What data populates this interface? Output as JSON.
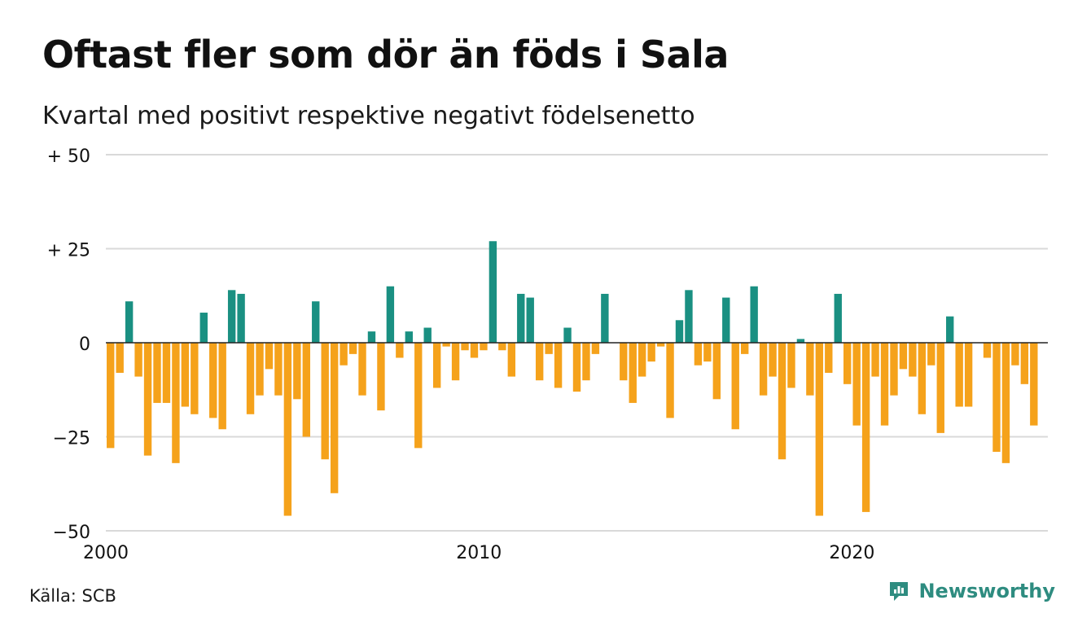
{
  "title": "Oftast fler som dör än föds i Sala",
  "subtitle": "Kvartal med positivt respektive negativt födelsenetto",
  "source": "Källa: SCB",
  "brand": {
    "name": "Newsworthy",
    "icon": "newsworthy-logo-icon",
    "color": "#2e8c80"
  },
  "colors": {
    "positive": "#1a9082",
    "negative": "#f5a21b",
    "grid": "#d9d9d9",
    "zero_line": "#222222"
  },
  "chart_data": {
    "type": "bar",
    "title": "Oftast fler som dör än föds i Sala",
    "subtitle": "Kvartal med positivt respektive negativt födelsenetto",
    "xlabel": "",
    "ylabel": "",
    "ylim": [
      -50,
      50
    ],
    "yticks": [
      {
        "value": 50,
        "label": "+ 50"
      },
      {
        "value": 25,
        "label": "+ 25"
      },
      {
        "value": 0,
        "label": "0"
      },
      {
        "value": -25,
        "label": "−25"
      },
      {
        "value": -50,
        "label": "−50"
      }
    ],
    "xticks": [
      {
        "value": 2000,
        "label": "2000"
      },
      {
        "value": 2010,
        "label": "2010"
      },
      {
        "value": 2020,
        "label": "2020"
      }
    ],
    "x_start": 2000,
    "x_end": 2025.25,
    "periods_per_year": 4,
    "grid": true,
    "legend": "none",
    "categories": [
      "2000Q1",
      "2000Q2",
      "2000Q3",
      "2000Q4",
      "2001Q1",
      "2001Q2",
      "2001Q3",
      "2001Q4",
      "2002Q1",
      "2002Q2",
      "2002Q3",
      "2002Q4",
      "2003Q1",
      "2003Q2",
      "2003Q3",
      "2003Q4",
      "2004Q1",
      "2004Q2",
      "2004Q3",
      "2004Q4",
      "2005Q1",
      "2005Q2",
      "2005Q3",
      "2005Q4",
      "2006Q1",
      "2006Q2",
      "2006Q3",
      "2006Q4",
      "2007Q1",
      "2007Q2",
      "2007Q3",
      "2007Q4",
      "2008Q1",
      "2008Q2",
      "2008Q3",
      "2008Q4",
      "2009Q1",
      "2009Q2",
      "2009Q3",
      "2009Q4",
      "2010Q1",
      "2010Q2",
      "2010Q3",
      "2010Q4",
      "2011Q1",
      "2011Q2",
      "2011Q3",
      "2011Q4",
      "2012Q1",
      "2012Q2",
      "2012Q3",
      "2012Q4",
      "2013Q1",
      "2013Q2",
      "2013Q3",
      "2013Q4",
      "2014Q1",
      "2014Q2",
      "2014Q3",
      "2014Q4",
      "2015Q1",
      "2015Q2",
      "2015Q3",
      "2015Q4",
      "2016Q1",
      "2016Q2",
      "2016Q3",
      "2016Q4",
      "2017Q1",
      "2017Q2",
      "2017Q3",
      "2017Q4",
      "2018Q1",
      "2018Q2",
      "2018Q3",
      "2018Q4",
      "2019Q1",
      "2019Q2",
      "2019Q3",
      "2019Q4",
      "2020Q1",
      "2020Q2",
      "2020Q3",
      "2020Q4",
      "2021Q1",
      "2021Q2",
      "2021Q3",
      "2021Q4",
      "2022Q1",
      "2022Q2",
      "2022Q3",
      "2022Q4",
      "2023Q1",
      "2023Q2",
      "2023Q3",
      "2023Q4",
      "2024Q1",
      "2024Q2",
      "2024Q3",
      "2024Q4",
      "2025Q1"
    ],
    "values": [
      -28,
      -8,
      11,
      -9,
      -30,
      -16,
      -16,
      -32,
      -17,
      -19,
      8,
      -20,
      -23,
      14,
      13,
      -19,
      -14,
      -7,
      -14,
      -46,
      -15,
      -25,
      11,
      -31,
      -40,
      -6,
      -3,
      -14,
      3,
      -18,
      15,
      -4,
      3,
      -28,
      4,
      -12,
      -1,
      -10,
      -2,
      -4,
      -2,
      27,
      -2,
      -9,
      13,
      12,
      -10,
      -3,
      -12,
      4,
      -13,
      -10,
      -3,
      13,
      0,
      -10,
      -16,
      -9,
      -5,
      -1,
      -20,
      6,
      14,
      -6,
      -5,
      -15,
      12,
      -23,
      -3,
      15,
      -14,
      -9,
      -31,
      -12,
      1,
      -14,
      -46,
      -8,
      13,
      -11,
      -22,
      -45,
      -9,
      -22,
      -14,
      -7,
      -9,
      -19,
      -6,
      -24,
      7,
      -17,
      -17,
      0,
      -4,
      -29,
      -32,
      -6,
      -11,
      -22,
      0
    ]
  }
}
